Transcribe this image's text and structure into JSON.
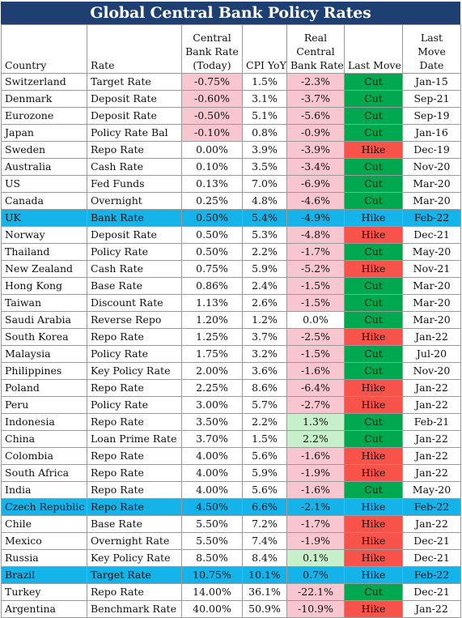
{
  "title": "Global Central Bank Policy Rates",
  "headers": {
    "country": "Country",
    "rate": "Rate",
    "cb_rate_1": "Central",
    "cb_rate_2": "Bank Rate",
    "cb_rate_3": "(Today)",
    "cpi": "CPI YoY",
    "real_1": "Real",
    "real_2": "Central",
    "real_3": "Bank Rate",
    "last_move": "Last Move",
    "last_date_1": "Last",
    "last_date_2": "Move",
    "last_date_3": "Date"
  },
  "colors": {
    "title_bg": "#1d3f72",
    "highlight_row": "#14b4ea",
    "negative_rate": "#f7c6ce",
    "positive_rate": "#c7efc9",
    "cut": "#00a84f",
    "hike": "#f8534a"
  },
  "rows": [
    {
      "country": "Switzerland",
      "rate": "Target Rate",
      "cb": "-0.75%",
      "cpi": "1.5%",
      "real": "-2.3%",
      "move": "Cut",
      "date": "Jan-15",
      "cb_neg": true,
      "real_sign": "neg",
      "hl": false
    },
    {
      "country": "Denmark",
      "rate": "Deposit Rate",
      "cb": "-0.60%",
      "cpi": "3.1%",
      "real": "-3.7%",
      "move": "Cut",
      "date": "Sep-21",
      "cb_neg": true,
      "real_sign": "neg",
      "hl": false
    },
    {
      "country": "Eurozone",
      "rate": "Deposit Rate",
      "cb": "-0.50%",
      "cpi": "5.1%",
      "real": "-5.6%",
      "move": "Cut",
      "date": "Sep-19",
      "cb_neg": true,
      "real_sign": "neg",
      "hl": false
    },
    {
      "country": "Japan",
      "rate": "Policy Rate Bal",
      "cb": "-0.10%",
      "cpi": "0.8%",
      "real": "-0.9%",
      "move": "Cut",
      "date": "Jan-16",
      "cb_neg": true,
      "real_sign": "neg",
      "hl": false
    },
    {
      "country": "Sweden",
      "rate": "Repo Rate",
      "cb": "0.00%",
      "cpi": "3.9%",
      "real": "-3.9%",
      "move": "Hike",
      "date": "Dec-19",
      "cb_neg": false,
      "real_sign": "neg",
      "hl": false
    },
    {
      "country": "Australia",
      "rate": "Cash Rate",
      "cb": "0.10%",
      "cpi": "3.5%",
      "real": "-3.4%",
      "move": "Cut",
      "date": "Nov-20",
      "cb_neg": false,
      "real_sign": "neg",
      "hl": false
    },
    {
      "country": "US",
      "rate": "Fed Funds",
      "cb": "0.13%",
      "cpi": "7.0%",
      "real": "-6.9%",
      "move": "Cut",
      "date": "Mar-20",
      "cb_neg": false,
      "real_sign": "neg",
      "hl": false
    },
    {
      "country": "Canada",
      "rate": "Overnight",
      "cb": "0.25%",
      "cpi": "4.8%",
      "real": "-4.6%",
      "move": "Cut",
      "date": "Mar-20",
      "cb_neg": false,
      "real_sign": "neg",
      "hl": false
    },
    {
      "country": "UK",
      "rate": "Bank Rate",
      "cb": "0.50%",
      "cpi": "5.4%",
      "real": "-4.9%",
      "move": "Hike",
      "date": "Feb-22",
      "cb_neg": false,
      "real_sign": "neg",
      "hl": true
    },
    {
      "country": "Norway",
      "rate": "Deposit Rate",
      "cb": "0.50%",
      "cpi": "5.3%",
      "real": "-4.8%",
      "move": "Hike",
      "date": "Dec-21",
      "cb_neg": false,
      "real_sign": "neg",
      "hl": false
    },
    {
      "country": "Thailand",
      "rate": "Policy Rate",
      "cb": "0.50%",
      "cpi": "2.2%",
      "real": "-1.7%",
      "move": "Cut",
      "date": "May-20",
      "cb_neg": false,
      "real_sign": "neg",
      "hl": false
    },
    {
      "country": "New Zealand",
      "rate": "Cash Rate",
      "cb": "0.75%",
      "cpi": "5.9%",
      "real": "-5.2%",
      "move": "Hike",
      "date": "Nov-21",
      "cb_neg": false,
      "real_sign": "neg",
      "hl": false
    },
    {
      "country": "Hong Kong",
      "rate": "Base Rate",
      "cb": "0.86%",
      "cpi": "2.4%",
      "real": "-1.5%",
      "move": "Cut",
      "date": "Mar-20",
      "cb_neg": false,
      "real_sign": "neg",
      "hl": false
    },
    {
      "country": "Taiwan",
      "rate": "Discount Rate",
      "cb": "1.13%",
      "cpi": "2.6%",
      "real": "-1.5%",
      "move": "Cut",
      "date": "Mar-20",
      "cb_neg": false,
      "real_sign": "neg",
      "hl": false
    },
    {
      "country": "Saudi Arabia",
      "rate": "Reverse Repo",
      "cb": "1.20%",
      "cpi": "1.2%",
      "real": "0.0%",
      "move": "Cut",
      "date": "Mar-20",
      "cb_neg": false,
      "real_sign": "zero",
      "hl": false
    },
    {
      "country": "South Korea",
      "rate": "Repo Rate",
      "cb": "1.25%",
      "cpi": "3.7%",
      "real": "-2.5%",
      "move": "Hike",
      "date": "Jan-22",
      "cb_neg": false,
      "real_sign": "neg",
      "hl": false
    },
    {
      "country": "Malaysia",
      "rate": "Policy Rate",
      "cb": "1.75%",
      "cpi": "3.2%",
      "real": "-1.5%",
      "move": "Cut",
      "date": "Jul-20",
      "cb_neg": false,
      "real_sign": "neg",
      "hl": false
    },
    {
      "country": "Philippines",
      "rate": "Key Policy Rate",
      "cb": "2.00%",
      "cpi": "3.6%",
      "real": "-1.6%",
      "move": "Cut",
      "date": "Nov-20",
      "cb_neg": false,
      "real_sign": "neg",
      "hl": false
    },
    {
      "country": "Poland",
      "rate": "Repo Rate",
      "cb": "2.25%",
      "cpi": "8.6%",
      "real": "-6.4%",
      "move": "Hike",
      "date": "Jan-22",
      "cb_neg": false,
      "real_sign": "neg",
      "hl": false
    },
    {
      "country": "Peru",
      "rate": "Policy Rate",
      "cb": "3.00%",
      "cpi": "5.7%",
      "real": "-2.7%",
      "move": "Hike",
      "date": "Jan-22",
      "cb_neg": false,
      "real_sign": "neg",
      "hl": false
    },
    {
      "country": "Indonesia",
      "rate": "Repo Rate",
      "cb": "3.50%",
      "cpi": "2.2%",
      "real": "1.3%",
      "move": "Cut",
      "date": "Feb-21",
      "cb_neg": false,
      "real_sign": "pos",
      "hl": false
    },
    {
      "country": "China",
      "rate": "Loan Prime Rate",
      "cb": "3.70%",
      "cpi": "1.5%",
      "real": "2.2%",
      "move": "Cut",
      "date": "Jan-22",
      "cb_neg": false,
      "real_sign": "pos",
      "hl": false
    },
    {
      "country": "Colombia",
      "rate": "Repo Rate",
      "cb": "4.00%",
      "cpi": "5.6%",
      "real": "-1.6%",
      "move": "Hike",
      "date": "Jan-22",
      "cb_neg": false,
      "real_sign": "neg",
      "hl": false
    },
    {
      "country": "South Africa",
      "rate": "Repo Rate",
      "cb": "4.00%",
      "cpi": "5.9%",
      "real": "-1.9%",
      "move": "Hike",
      "date": "Jan-22",
      "cb_neg": false,
      "real_sign": "neg",
      "hl": false
    },
    {
      "country": "India",
      "rate": "Repo Rate",
      "cb": "4.00%",
      "cpi": "5.6%",
      "real": "-1.6%",
      "move": "Cut",
      "date": "May-20",
      "cb_neg": false,
      "real_sign": "neg",
      "hl": false
    },
    {
      "country": "Czech Republic",
      "rate": "Repo Rate",
      "cb": "4.50%",
      "cpi": "6.6%",
      "real": "-2.1%",
      "move": "Hike",
      "date": "Feb-22",
      "cb_neg": false,
      "real_sign": "neg",
      "hl": true
    },
    {
      "country": "Chile",
      "rate": "Base Rate",
      "cb": "5.50%",
      "cpi": "7.2%",
      "real": "-1.7%",
      "move": "Hike",
      "date": "Jan-22",
      "cb_neg": false,
      "real_sign": "neg",
      "hl": false
    },
    {
      "country": "Mexico",
      "rate": "Overnight Rate",
      "cb": "5.50%",
      "cpi": "7.4%",
      "real": "-1.9%",
      "move": "Hike",
      "date": "Dec-21",
      "cb_neg": false,
      "real_sign": "neg",
      "hl": false
    },
    {
      "country": "Russia",
      "rate": "Key Policy Rate",
      "cb": "8.50%",
      "cpi": "8.4%",
      "real": "0.1%",
      "move": "Hike",
      "date": "Dec-21",
      "cb_neg": false,
      "real_sign": "pos",
      "hl": false
    },
    {
      "country": "Brazil",
      "rate": "Target Rate",
      "cb": "10.75%",
      "cpi": "10.1%",
      "real": "0.7%",
      "move": "Hike",
      "date": "Feb-22",
      "cb_neg": false,
      "real_sign": "pos",
      "hl": true
    },
    {
      "country": "Turkey",
      "rate": "Repo Rate",
      "cb": "14.00%",
      "cpi": "36.1%",
      "real": "-22.1%",
      "move": "Cut",
      "date": "Dec-21",
      "cb_neg": false,
      "real_sign": "neg",
      "hl": false
    },
    {
      "country": "Argentina",
      "rate": "Benchmark Rate",
      "cb": "40.00%",
      "cpi": "50.9%",
      "real": "-10.9%",
      "move": "Hike",
      "date": "Jan-22",
      "cb_neg": false,
      "real_sign": "neg",
      "hl": false
    }
  ]
}
